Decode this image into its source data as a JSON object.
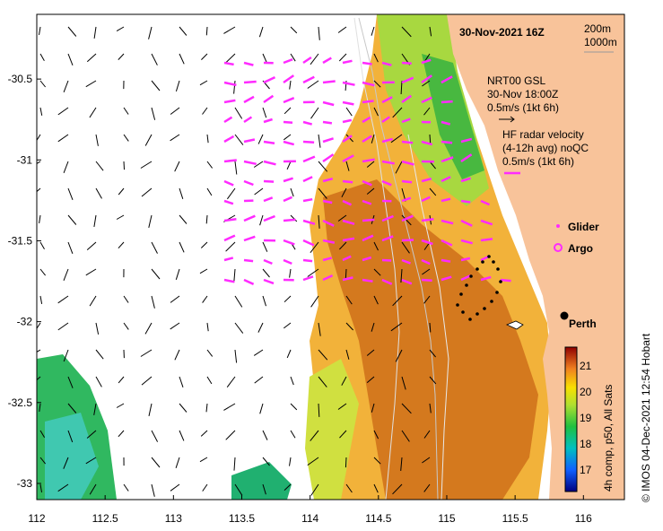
{
  "map": {
    "title": "30-Nov-2021 16Z",
    "depth_labels": [
      "200m",
      "1000m"
    ],
    "x_axis": {
      "min": 112,
      "max": 116.3,
      "ticks": [
        "112",
        "112.5",
        "113",
        "113.5",
        "114",
        "114.5",
        "115",
        "115.5",
        "116"
      ]
    },
    "y_axis": {
      "min": -33.1,
      "max": -30.1,
      "ticks": [
        "-30.5",
        "-31",
        "-31.5",
        "-32",
        "-32.5",
        "-33"
      ]
    },
    "wind_legend": {
      "line1": "NRT00 GSL",
      "line2": "30-Nov 18:00Z",
      "line3": "0.5m/s (1kt 6h)"
    },
    "radar_legend": {
      "line1": "HF radar velocity",
      "line2": "(4-12h avg) noQC",
      "line3": "0.5m/s (1kt 6h)"
    },
    "glider_label": "Glider",
    "argo_label": "Argo",
    "city_label": "Perth",
    "colorbar": {
      "ticks": [
        "21",
        "20",
        "19",
        "18",
        "17"
      ],
      "label": "4h comp, p50, All Sats"
    },
    "credit": "© IMOS 04-Dec-2021 12:54 Hobart",
    "colors": {
      "land": "#f8c39a",
      "ocean": "#ffffff",
      "radar": "#ff2bff",
      "glider_track": "#000000"
    }
  }
}
